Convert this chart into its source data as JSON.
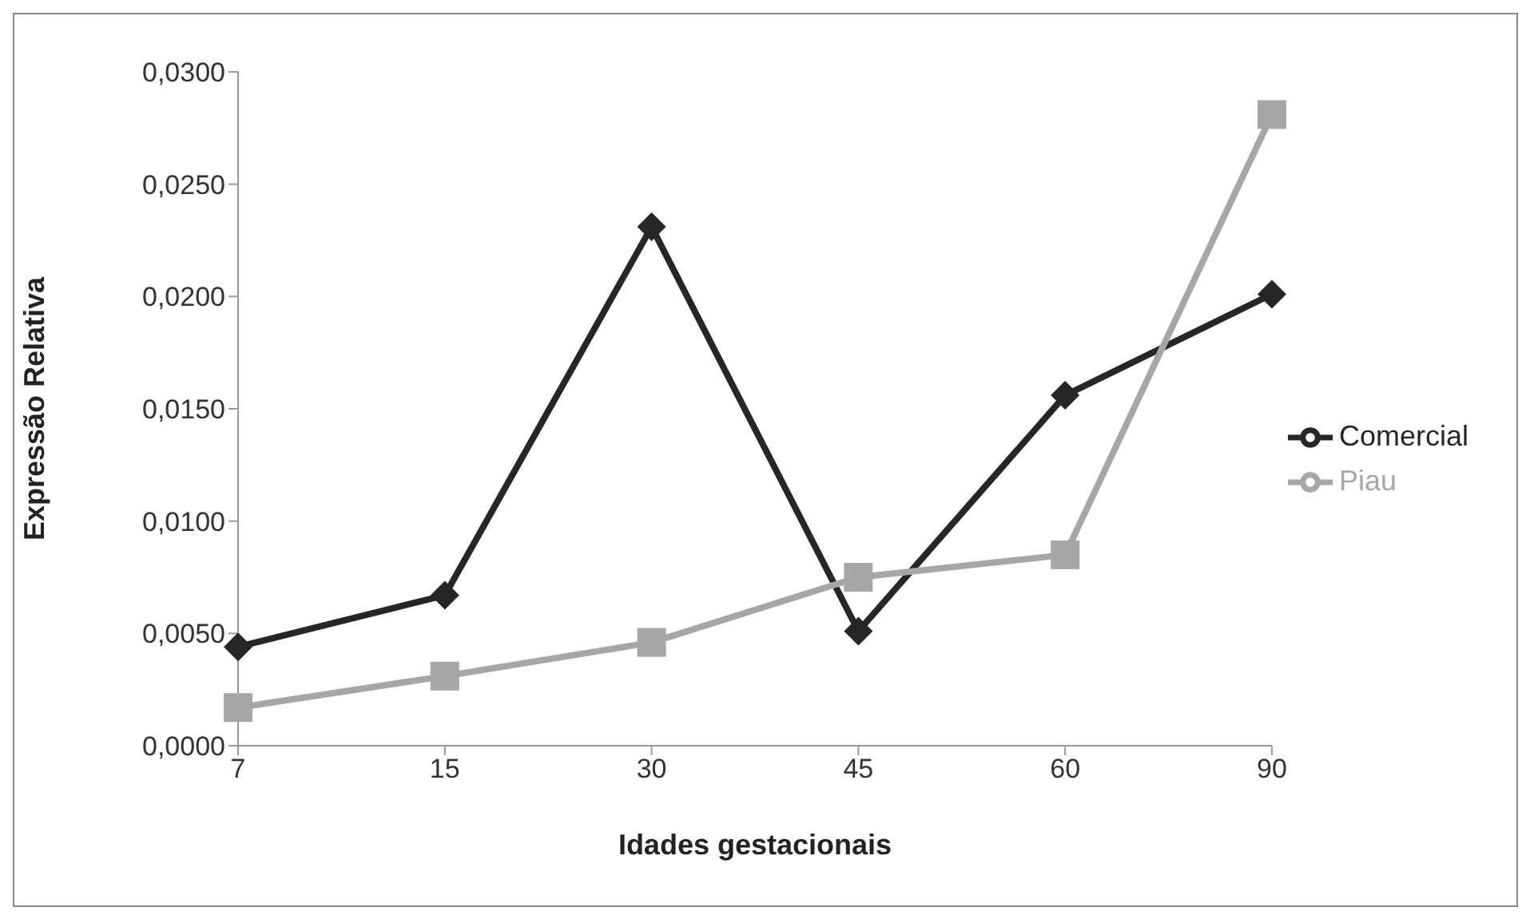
{
  "chart_data": {
    "type": "line",
    "xlabel": "Idades gestacionais",
    "ylabel": "Expressão Relativa",
    "categories": [
      "7",
      "15",
      "30",
      "45",
      "60",
      "90"
    ],
    "series": [
      {
        "name": "Comercial",
        "color": "#262626",
        "marker": "diamond",
        "values": [
          0.0044,
          0.0067,
          0.0231,
          0.0051,
          0.0156,
          0.0201
        ]
      },
      {
        "name": "Piau",
        "color": "#a6a6a6",
        "marker": "square",
        "values": [
          0.0017,
          0.0031,
          0.0046,
          0.0075,
          0.0085,
          0.0281
        ]
      }
    ],
    "ylim": [
      0,
      0.03
    ],
    "yticks": [
      {
        "value": 0,
        "label": "0,0000"
      },
      {
        "value": 0.005,
        "label": "0,0050"
      },
      {
        "value": 0.01,
        "label": "0,0100"
      },
      {
        "value": 0.015,
        "label": "0,0150"
      },
      {
        "value": 0.02,
        "label": "0,0200"
      },
      {
        "value": 0.025,
        "label": "0,0250"
      },
      {
        "value": 0.03,
        "label": "0,0300"
      }
    ],
    "grid": false,
    "legend": "right",
    "line_style": "solid"
  }
}
